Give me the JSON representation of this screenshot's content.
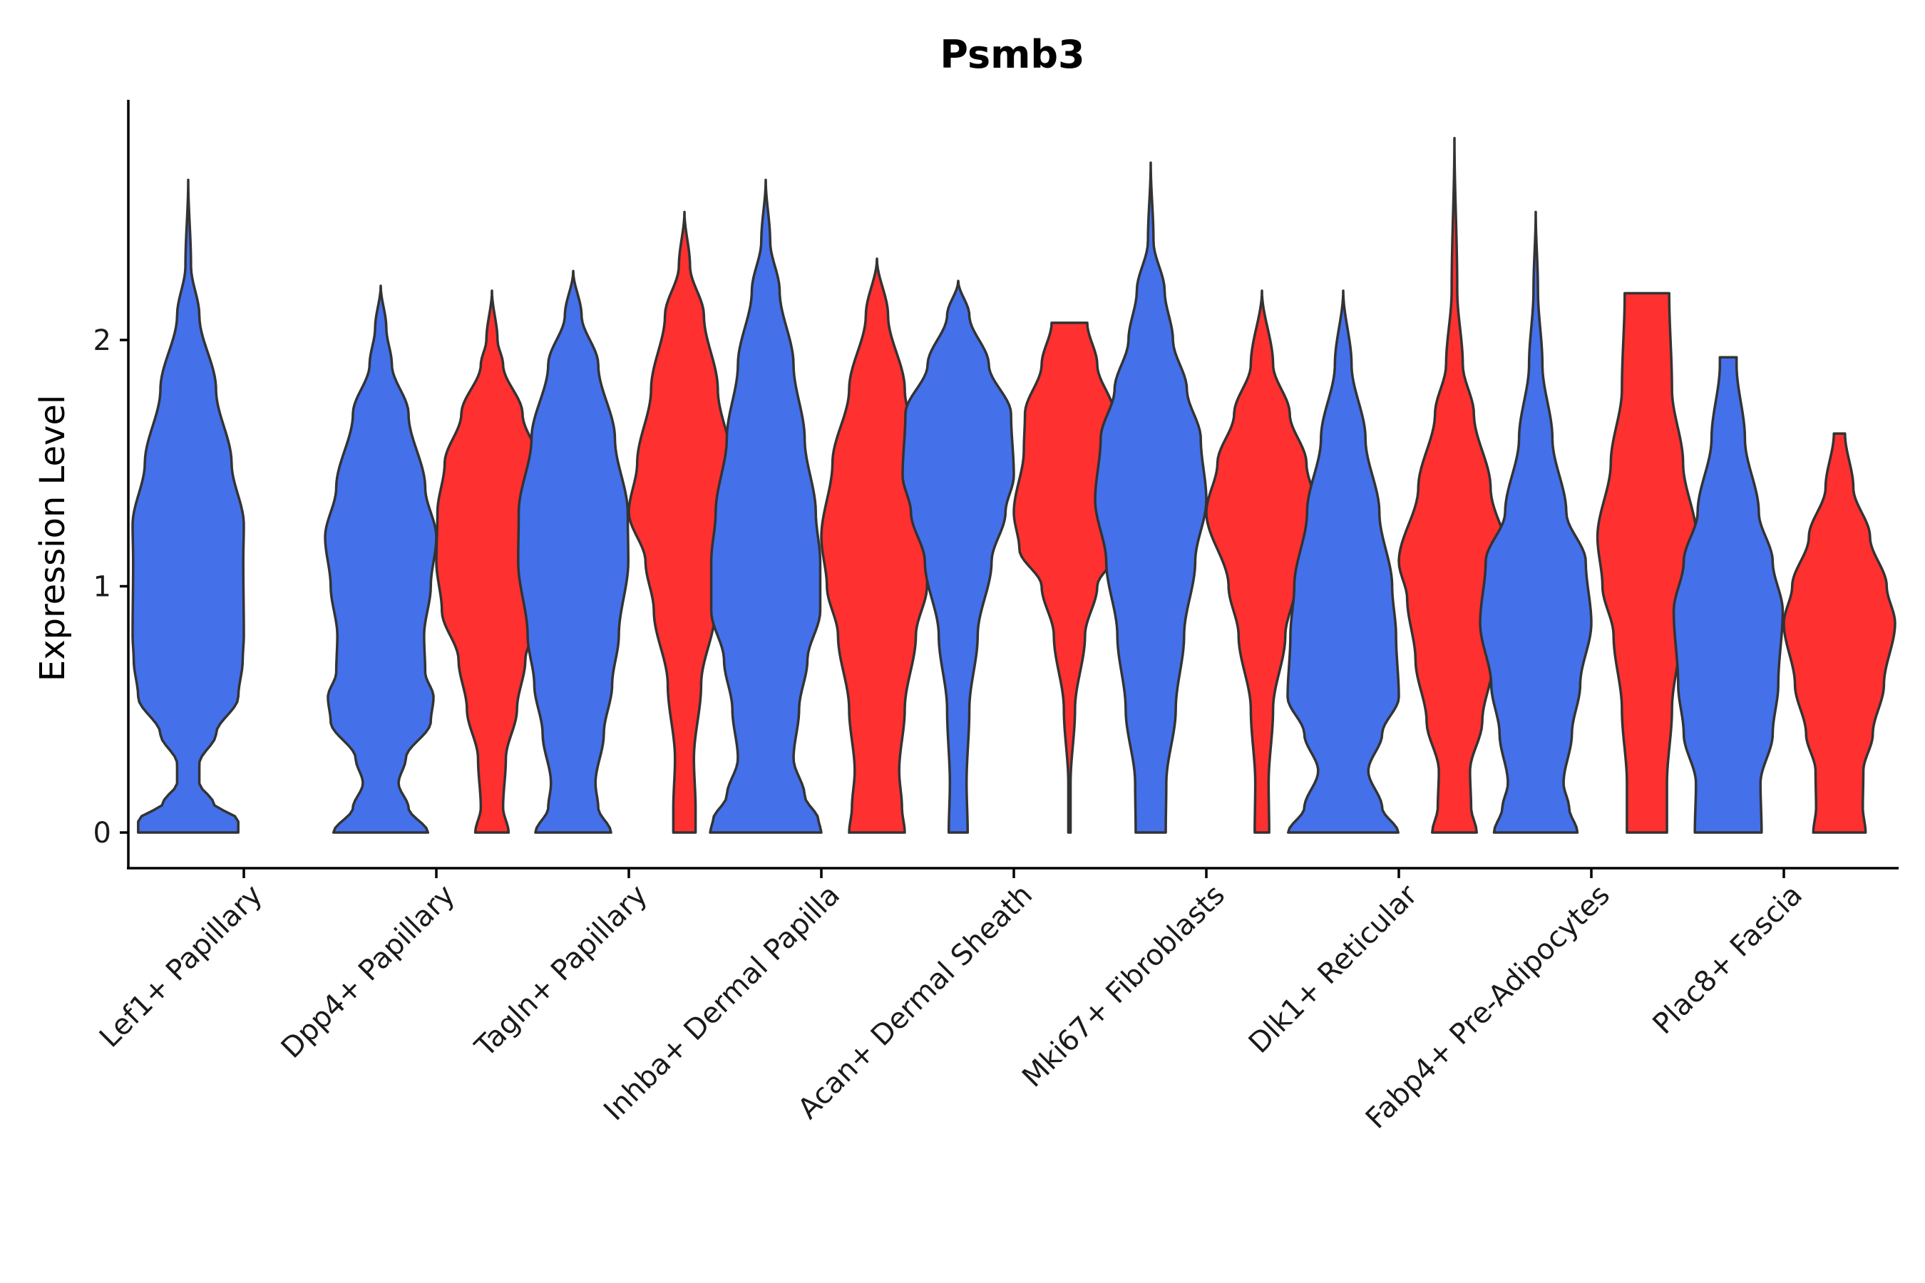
{
  "chart_data": {
    "type": "violin",
    "title": "Psmb3",
    "xlabel": "",
    "ylabel": "Expression Level",
    "ylim": [
      -0.14,
      2.96
    ],
    "yticks": [
      0,
      1,
      2
    ],
    "colors": {
      "group_a": "#4470EA",
      "group_b": "#FF3030",
      "outline": "#333333"
    },
    "categories": [
      "Lef1+ Papillary",
      "Dpp4+ Papillary",
      "Tagln+ Papillary",
      "Inhba+ Dermal Papilla",
      "Acan+ Dermal Sheath",
      "Mki67+ Fibroblasts",
      "Dlk1+ Reticular",
      "Fabp4+ Pre-Adipocytes",
      "Plac8+ Fascia"
    ],
    "violins": [
      {
        "category": 0,
        "group": "a",
        "max": 2.65,
        "profile": [
          [
            0,
            0.9
          ],
          [
            0.05,
            0.9
          ],
          [
            0.12,
            0.45
          ],
          [
            0.2,
            0.2
          ],
          [
            0.28,
            0.2
          ],
          [
            0.4,
            0.5
          ],
          [
            0.55,
            0.9
          ],
          [
            0.7,
            0.98
          ],
          [
            0.8,
            1.0
          ],
          [
            1.1,
            0.99
          ],
          [
            1.25,
            1.0
          ],
          [
            1.5,
            0.78
          ],
          [
            1.8,
            0.5
          ],
          [
            2.1,
            0.2
          ],
          [
            2.3,
            0.05
          ],
          [
            2.65,
            0
          ]
        ]
      },
      {
        "category": 1,
        "group": "a",
        "max": 2.22,
        "profile": [
          [
            0,
            0.85
          ],
          [
            0.1,
            0.5
          ],
          [
            0.2,
            0.32
          ],
          [
            0.3,
            0.45
          ],
          [
            0.45,
            0.9
          ],
          [
            0.55,
            0.95
          ],
          [
            0.65,
            0.8
          ],
          [
            0.8,
            0.78
          ],
          [
            1.0,
            0.9
          ],
          [
            1.2,
            1.0
          ],
          [
            1.4,
            0.8
          ],
          [
            1.7,
            0.5
          ],
          [
            1.9,
            0.2
          ],
          [
            2.05,
            0.1
          ],
          [
            2.22,
            0
          ]
        ]
      },
      {
        "category": 1,
        "group": "b",
        "max": 2.2,
        "profile": [
          [
            0,
            0.3
          ],
          [
            0.1,
            0.2
          ],
          [
            0.3,
            0.25
          ],
          [
            0.5,
            0.45
          ],
          [
            0.7,
            0.6
          ],
          [
            0.9,
            0.9
          ],
          [
            1.1,
            1.0
          ],
          [
            1.3,
            0.98
          ],
          [
            1.5,
            0.85
          ],
          [
            1.7,
            0.55
          ],
          [
            1.9,
            0.2
          ],
          [
            2.0,
            0.1
          ],
          [
            2.2,
            0
          ]
        ]
      },
      {
        "category": 2,
        "group": "a",
        "max": 2.28,
        "profile": [
          [
            0,
            0.68
          ],
          [
            0.1,
            0.45
          ],
          [
            0.2,
            0.4
          ],
          [
            0.4,
            0.55
          ],
          [
            0.6,
            0.7
          ],
          [
            0.8,
            0.82
          ],
          [
            1.1,
            0.99
          ],
          [
            1.3,
            0.98
          ],
          [
            1.6,
            0.75
          ],
          [
            1.9,
            0.45
          ],
          [
            2.1,
            0.15
          ],
          [
            2.28,
            0
          ]
        ]
      },
      {
        "category": 2,
        "group": "b",
        "max": 2.52,
        "profile": [
          [
            0,
            0.2
          ],
          [
            0.1,
            0.2
          ],
          [
            0.3,
            0.17
          ],
          [
            0.6,
            0.3
          ],
          [
            0.9,
            0.55
          ],
          [
            1.1,
            0.7
          ],
          [
            1.3,
            1.0
          ],
          [
            1.5,
            0.85
          ],
          [
            1.8,
            0.6
          ],
          [
            2.1,
            0.35
          ],
          [
            2.3,
            0.1
          ],
          [
            2.52,
            0
          ]
        ]
      },
      {
        "category": 3,
        "group": "a",
        "max": 2.65,
        "profile": [
          [
            0,
            1.0
          ],
          [
            0.05,
            0.95
          ],
          [
            0.15,
            0.7
          ],
          [
            0.3,
            0.5
          ],
          [
            0.5,
            0.6
          ],
          [
            0.7,
            0.75
          ],
          [
            0.9,
            0.98
          ],
          [
            1.1,
            0.98
          ],
          [
            1.3,
            0.9
          ],
          [
            1.6,
            0.7
          ],
          [
            1.9,
            0.5
          ],
          [
            2.2,
            0.25
          ],
          [
            2.4,
            0.08
          ],
          [
            2.65,
            0
          ]
        ]
      },
      {
        "category": 3,
        "group": "b",
        "max": 2.33,
        "profile": [
          [
            0,
            0.5
          ],
          [
            0.1,
            0.45
          ],
          [
            0.25,
            0.4
          ],
          [
            0.5,
            0.5
          ],
          [
            0.8,
            0.7
          ],
          [
            1.0,
            0.9
          ],
          [
            1.2,
            1.0
          ],
          [
            1.5,
            0.8
          ],
          [
            1.8,
            0.5
          ],
          [
            2.1,
            0.2
          ],
          [
            2.33,
            0
          ]
        ]
      },
      {
        "category": 4,
        "group": "a",
        "max": 2.24,
        "profile": [
          [
            0,
            0.17
          ],
          [
            0.2,
            0.15
          ],
          [
            0.5,
            0.2
          ],
          [
            0.8,
            0.35
          ],
          [
            1.1,
            0.6
          ],
          [
            1.3,
            0.85
          ],
          [
            1.45,
            1.0
          ],
          [
            1.7,
            0.95
          ],
          [
            1.9,
            0.55
          ],
          [
            2.1,
            0.2
          ],
          [
            2.24,
            0
          ]
        ]
      },
      {
        "category": 4,
        "group": "b",
        "max": 2.07,
        "profile": [
          [
            0,
            0.02
          ],
          [
            0.2,
            0.02
          ],
          [
            0.5,
            0.1
          ],
          [
            0.8,
            0.28
          ],
          [
            1.0,
            0.5
          ],
          [
            1.15,
            0.9
          ],
          [
            1.3,
            1.0
          ],
          [
            1.55,
            0.82
          ],
          [
            1.7,
            0.8
          ],
          [
            1.9,
            0.5
          ],
          [
            2.07,
            0.32
          ]
        ]
      },
      {
        "category": 5,
        "group": "a",
        "max": 2.72,
        "profile": [
          [
            0,
            0.27
          ],
          [
            0.2,
            0.28
          ],
          [
            0.5,
            0.45
          ],
          [
            0.8,
            0.6
          ],
          [
            1.1,
            0.8
          ],
          [
            1.35,
            1.0
          ],
          [
            1.6,
            0.9
          ],
          [
            1.8,
            0.65
          ],
          [
            2.0,
            0.4
          ],
          [
            2.2,
            0.25
          ],
          [
            2.4,
            0.05
          ],
          [
            2.72,
            0
          ]
        ]
      },
      {
        "category": 5,
        "group": "b",
        "max": 2.2,
        "profile": [
          [
            0,
            0.13
          ],
          [
            0.2,
            0.12
          ],
          [
            0.5,
            0.2
          ],
          [
            0.8,
            0.42
          ],
          [
            1.0,
            0.6
          ],
          [
            1.3,
            1.0
          ],
          [
            1.5,
            0.8
          ],
          [
            1.7,
            0.5
          ],
          [
            1.9,
            0.2
          ],
          [
            2.2,
            0
          ]
        ]
      },
      {
        "category": 6,
        "group": "a",
        "max": 2.2,
        "profile": [
          [
            0,
            0.99
          ],
          [
            0.1,
            0.7
          ],
          [
            0.25,
            0.45
          ],
          [
            0.4,
            0.7
          ],
          [
            0.55,
            1.0
          ],
          [
            0.8,
            0.95
          ],
          [
            1.0,
            0.88
          ],
          [
            1.3,
            0.65
          ],
          [
            1.6,
            0.4
          ],
          [
            1.9,
            0.15
          ],
          [
            2.2,
            0
          ]
        ]
      },
      {
        "category": 6,
        "group": "b",
        "max": 2.82,
        "profile": [
          [
            0,
            0.4
          ],
          [
            0.1,
            0.3
          ],
          [
            0.25,
            0.28
          ],
          [
            0.45,
            0.5
          ],
          [
            0.7,
            0.7
          ],
          [
            0.95,
            0.85
          ],
          [
            1.1,
            1.0
          ],
          [
            1.4,
            0.65
          ],
          [
            1.7,
            0.35
          ],
          [
            1.9,
            0.15
          ],
          [
            2.2,
            0.05
          ],
          [
            2.82,
            0
          ]
        ]
      },
      {
        "category": 7,
        "group": "a",
        "max": 2.52,
        "profile": [
          [
            0,
            0.75
          ],
          [
            0.1,
            0.6
          ],
          [
            0.2,
            0.5
          ],
          [
            0.4,
            0.65
          ],
          [
            0.6,
            0.8
          ],
          [
            0.85,
            1.0
          ],
          [
            1.1,
            0.9
          ],
          [
            1.3,
            0.55
          ],
          [
            1.6,
            0.3
          ],
          [
            1.9,
            0.12
          ],
          [
            2.2,
            0.04
          ],
          [
            2.52,
            0
          ]
        ]
      },
      {
        "category": 7,
        "group": "b",
        "max": 2.19,
        "profile": [
          [
            0,
            0.36
          ],
          [
            0.2,
            0.36
          ],
          [
            0.5,
            0.45
          ],
          [
            0.8,
            0.6
          ],
          [
            1.0,
            0.8
          ],
          [
            1.2,
            0.89
          ],
          [
            1.5,
            0.65
          ],
          [
            1.8,
            0.45
          ],
          [
            2.19,
            0.4
          ]
        ]
      },
      {
        "category": 8,
        "group": "a",
        "max": 1.93,
        "profile": [
          [
            0,
            0.6
          ],
          [
            0.2,
            0.58
          ],
          [
            0.4,
            0.8
          ],
          [
            0.6,
            0.9
          ],
          [
            0.9,
            0.98
          ],
          [
            1.1,
            0.8
          ],
          [
            1.3,
            0.55
          ],
          [
            1.6,
            0.3
          ],
          [
            1.9,
            0.15
          ],
          [
            1.93,
            0.15
          ]
        ]
      },
      {
        "category": 8,
        "group": "b",
        "max": 1.62,
        "profile": [
          [
            0,
            0.47
          ],
          [
            0.1,
            0.42
          ],
          [
            0.25,
            0.43
          ],
          [
            0.4,
            0.6
          ],
          [
            0.6,
            0.8
          ],
          [
            0.85,
            1.0
          ],
          [
            1.0,
            0.85
          ],
          [
            1.2,
            0.55
          ],
          [
            1.4,
            0.25
          ],
          [
            1.62,
            0.1
          ]
        ]
      }
    ]
  }
}
